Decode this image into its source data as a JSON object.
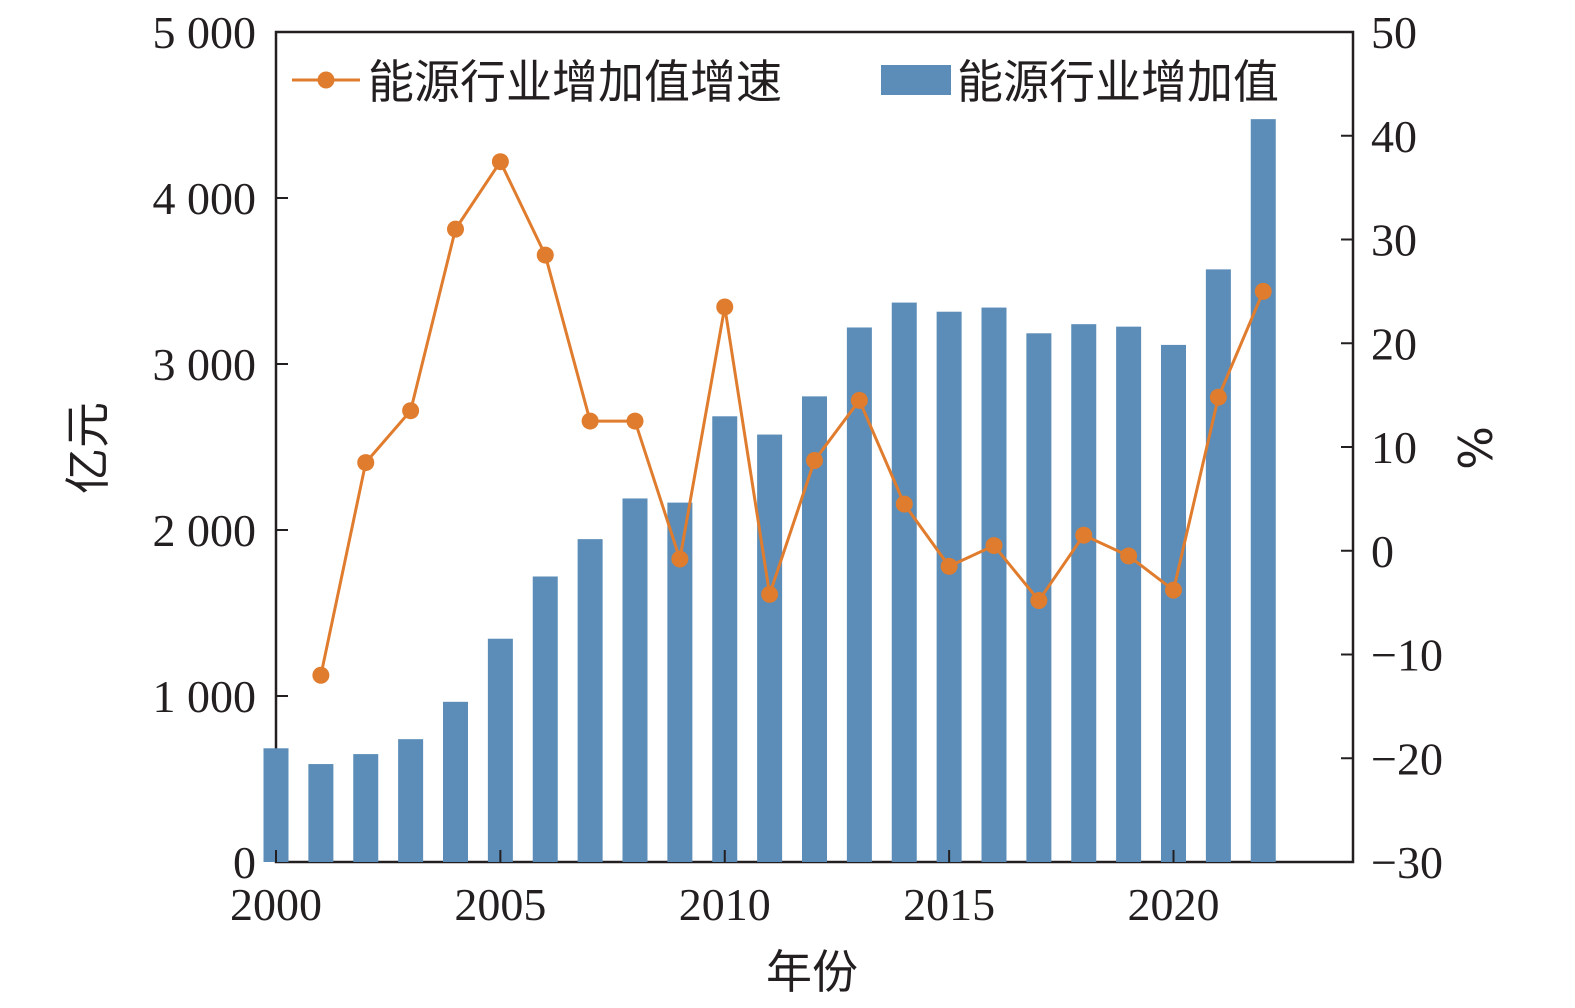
{
  "chart_data": {
    "type": "bar+line",
    "x": [
      2000,
      2001,
      2002,
      2003,
      2004,
      2005,
      2006,
      2007,
      2008,
      2009,
      2010,
      2011,
      2012,
      2013,
      2014,
      2015,
      2016,
      2017,
      2018,
      2019,
      2020,
      2021,
      2022
    ],
    "series": [
      {
        "name": "能源行业增加值",
        "type": "bar",
        "axis": "left",
        "color": "#5b8db8",
        "values": [
          685,
          590,
          650,
          740,
          965,
          1345,
          1720,
          1945,
          2190,
          2165,
          2685,
          2575,
          2805,
          3220,
          3370,
          3315,
          3340,
          3185,
          3240,
          3225,
          3115,
          3570,
          4475
        ]
      },
      {
        "name": "能源行业增加值增速",
        "type": "line",
        "axis": "right",
        "color": "#e07c2e",
        "values": [
          null,
          -12,
          8.5,
          13.5,
          31,
          37.5,
          28.5,
          12.5,
          12.5,
          -0.8,
          23.5,
          -4.2,
          8.7,
          14.5,
          4.5,
          -1.5,
          0.5,
          -4.8,
          1.5,
          -0.5,
          -3.8,
          14.8,
          25
        ]
      }
    ],
    "xlabel": "年份",
    "ylabel": "亿元",
    "y2label": "%",
    "xlim": [
      2000,
      2024
    ],
    "ylim": [
      0,
      5000
    ],
    "y2lim": [
      -30,
      50
    ],
    "xticks": [
      "2000",
      "2005",
      "2010",
      "2015",
      "2020"
    ],
    "yticks": [
      "0",
      "1 000",
      "2 000",
      "3 000",
      "4 000",
      "5 000"
    ],
    "y2ticks": [
      "−30",
      "−20",
      "−10",
      "0",
      "10",
      "20",
      "30",
      "40",
      "50"
    ],
    "legend_position": "top",
    "grid": false
  }
}
